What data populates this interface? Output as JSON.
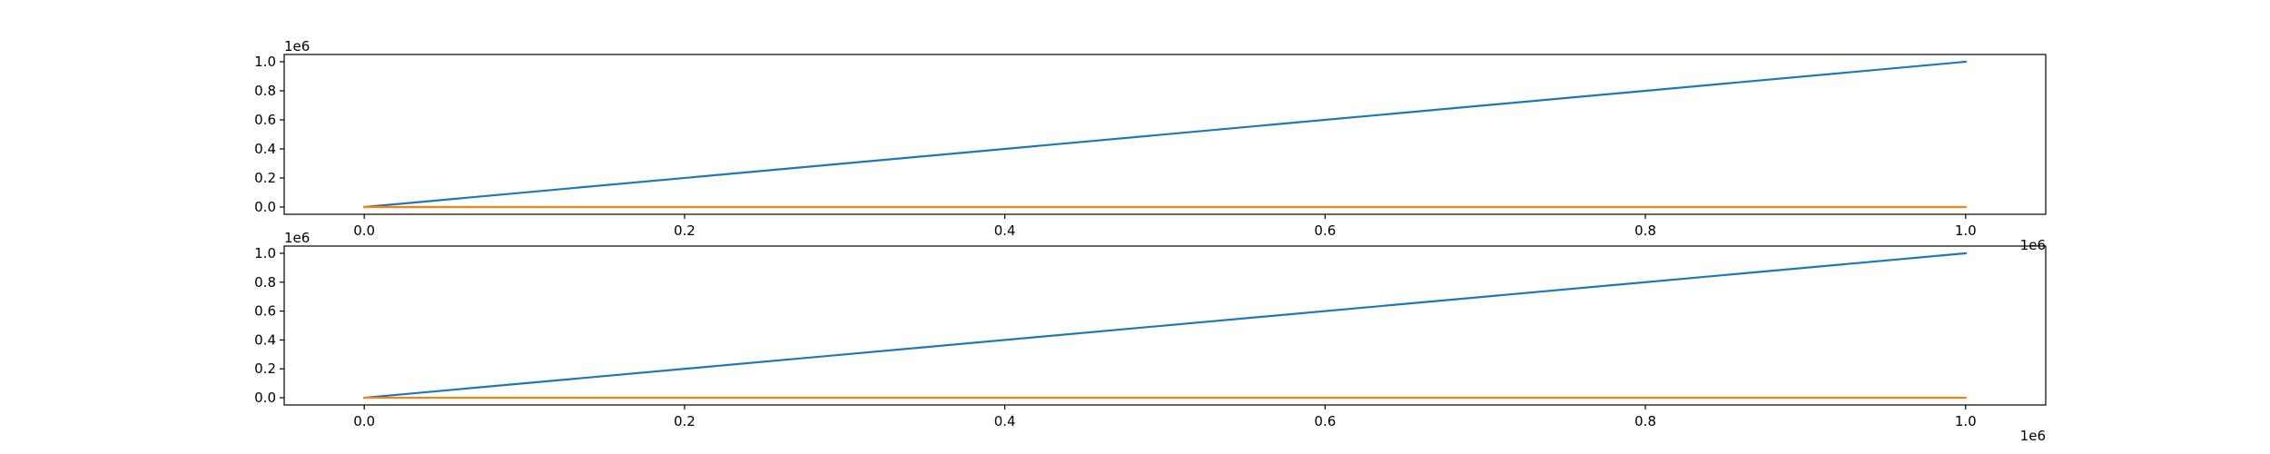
{
  "chart_data": [
    {
      "type": "line",
      "xlim": [
        -50000,
        1050000
      ],
      "ylim": [
        -50000,
        1050000
      ],
      "x_ticks": [
        0,
        200000,
        400000,
        600000,
        800000,
        1000000
      ],
      "x_tick_labels": [
        "0.0",
        "0.2",
        "0.4",
        "0.6",
        "0.8",
        "1.0"
      ],
      "y_ticks": [
        0,
        200000,
        400000,
        600000,
        800000,
        1000000
      ],
      "y_tick_labels": [
        "0.0",
        "0.2",
        "0.4",
        "0.6",
        "0.8",
        "1.0"
      ],
      "x_offset_label": "1e6",
      "y_offset_label": "1e6",
      "grid": false,
      "series": [
        {
          "color": "#1f77b4",
          "x": [
            0,
            1000000
          ],
          "y": [
            0,
            1000000
          ]
        },
        {
          "color": "#ff7f0e",
          "x": [
            0,
            1000000
          ],
          "y": [
            0,
            0
          ]
        }
      ]
    },
    {
      "type": "line",
      "xlim": [
        -50000,
        1050000
      ],
      "ylim": [
        -50000,
        1050000
      ],
      "x_ticks": [
        0,
        200000,
        400000,
        600000,
        800000,
        1000000
      ],
      "x_tick_labels": [
        "0.0",
        "0.2",
        "0.4",
        "0.6",
        "0.8",
        "1.0"
      ],
      "y_ticks": [
        0,
        200000,
        400000,
        600000,
        800000,
        1000000
      ],
      "y_tick_labels": [
        "0.0",
        "0.2",
        "0.4",
        "0.6",
        "0.8",
        "1.0"
      ],
      "x_offset_label": "1e6",
      "y_offset_label": "1e6",
      "grid": false,
      "series": [
        {
          "color": "#1f77b4",
          "x": [
            0,
            1000000
          ],
          "y": [
            0,
            1000000
          ]
        },
        {
          "color": "#ff7f0e",
          "x": [
            0,
            1000000
          ],
          "y": [
            0,
            0
          ]
        }
      ]
    }
  ]
}
